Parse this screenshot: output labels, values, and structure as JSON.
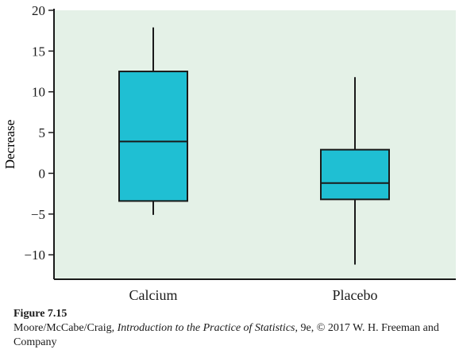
{
  "chart_data": {
    "type": "box",
    "ylabel": "Decrease",
    "xlabel": "",
    "ylim": [
      -13,
      20
    ],
    "yticks": [
      20,
      15,
      10,
      5,
      0,
      -5,
      -10
    ],
    "ytick_labels": [
      "20",
      "15",
      "10",
      "5",
      "0",
      "−5",
      "−10"
    ],
    "categories": [
      "Calcium",
      "Placebo"
    ],
    "boxes": [
      {
        "label": "Calcium",
        "min": -5.1,
        "q1": -3.4,
        "median": 3.9,
        "q3": 12.5,
        "max": 17.9
      },
      {
        "label": "Placebo",
        "min": -11.2,
        "q1": -3.2,
        "median": -1.2,
        "q3": 2.9,
        "max": 11.8
      }
    ],
    "colors": {
      "plot_bg": "#e4f1e7",
      "box_fill": "#1fbfd3",
      "stroke": "#1a1a1a"
    }
  },
  "caption": {
    "figure_label": "Figure 7.15",
    "source_authors": "Moore/McCabe/Craig, ",
    "source_title": "Introduction to the Practice of Statistics",
    "source_rest": ", 9e, © 2017 W. H. Freeman and Company"
  }
}
